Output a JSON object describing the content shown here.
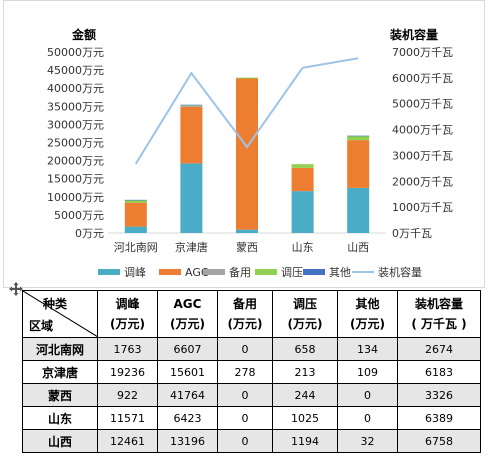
{
  "chart_data": {
    "type": "bar+line",
    "stacked": true,
    "categories": [
      "河北南网",
      "京津唐",
      "蒙西",
      "山东",
      "山西"
    ],
    "series": [
      {
        "name": "调峰",
        "color": "#4bacc6",
        "values": [
          1763,
          19236,
          922,
          11571,
          12461
        ]
      },
      {
        "name": "AGC",
        "color": "#ed7d31",
        "values": [
          6607,
          15601,
          41764,
          6423,
          13196
        ]
      },
      {
        "name": "备用",
        "color": "#a5a5a5",
        "values": [
          0,
          278,
          0,
          0,
          0
        ]
      },
      {
        "name": "调压",
        "color": "#92d050",
        "values": [
          658,
          213,
          244,
          1025,
          1194
        ]
      },
      {
        "name": "其他",
        "color": "#4472c4",
        "values": [
          134,
          109,
          0,
          0,
          32
        ]
      }
    ],
    "line_series": {
      "name": "装机容量",
      "color": "#9dc3e6",
      "values": [
        2674,
        6183,
        3326,
        6389,
        6758
      ]
    },
    "y_left": {
      "title": "金额",
      "min": 0,
      "max": 50000,
      "step": 5000,
      "unit": "万元"
    },
    "y_right": {
      "title": "装机容量",
      "min": 0,
      "max": 7000,
      "step": 1000,
      "unit": "万千瓦"
    },
    "grid": false,
    "legend_position": "bottom"
  },
  "table": {
    "corner_top": "种类",
    "corner_bottom": "区域",
    "headers": [
      {
        "top": "调峰",
        "bottom": "(万元)"
      },
      {
        "top": "AGC",
        "bottom": "(万元)"
      },
      {
        "top": "备用",
        "bottom": "(万元)"
      },
      {
        "top": "调压",
        "bottom": "(万元)"
      },
      {
        "top": "其他",
        "bottom": "(万元)"
      },
      {
        "top": "装机容量",
        "bottom": "( 万千瓦 )"
      }
    ],
    "rows": [
      {
        "region": "河北南网",
        "cells": [
          "1763",
          "6607",
          "0",
          "658",
          "134",
          "2674"
        ]
      },
      {
        "region": "京津唐",
        "cells": [
          "19236",
          "15601",
          "278",
          "213",
          "109",
          "6183"
        ]
      },
      {
        "region": "蒙西",
        "cells": [
          "922",
          "41764",
          "0",
          "244",
          "0",
          "3326"
        ]
      },
      {
        "region": "山东",
        "cells": [
          "11571",
          "6423",
          "0",
          "1025",
          "0",
          "6389"
        ]
      },
      {
        "region": "山西",
        "cells": [
          "12461",
          "13196",
          "0",
          "1194",
          "32",
          "6758"
        ]
      }
    ]
  },
  "icons": {
    "move_handle": "move-handle-icon"
  }
}
